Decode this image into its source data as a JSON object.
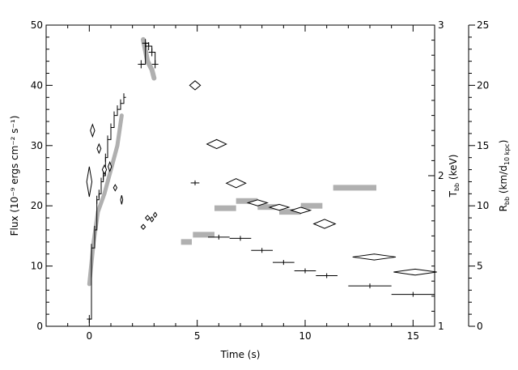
{
  "chart_data": {
    "type": "scatter",
    "title": "",
    "xlabel": "Time (s)",
    "ylabel_left": "Flux (10⁻⁹ ergs cm⁻² s⁻¹)",
    "ylabel_right_inner": "T",
    "ylabel_right_inner_sub": "bb",
    "ylabel_right_inner_unit": " (keV)",
    "ylabel_right_outer": "R",
    "ylabel_right_outer_sub": "bb",
    "ylabel_right_outer_unit": " (km/d",
    "ylabel_right_outer_sub2": "10 kpc",
    "ylabel_right_outer_close": ")",
    "xlim": [
      -2,
      16
    ],
    "ylim_left": [
      0,
      50
    ],
    "ylim_temp": [
      1,
      3
    ],
    "ylim_radius": [
      0,
      25
    ],
    "x_ticks": [
      0,
      5,
      10,
      15
    ],
    "x_tick_labels": [
      "0",
      "5",
      "10",
      "15"
    ],
    "y_left_ticks": [
      0,
      10,
      20,
      30,
      40,
      50
    ],
    "y_left_tick_labels": [
      "0",
      "10",
      "20",
      "30",
      "40",
      "50"
    ],
    "temp_ticks": [
      1,
      2,
      3
    ],
    "temp_tick_labels": [
      "1",
      "2",
      "3"
    ],
    "radius_ticks": [
      0,
      5,
      10,
      15,
      20,
      25
    ],
    "radius_tick_labels": [
      "0",
      "5",
      "10",
      "15",
      "20",
      "25"
    ],
    "grid": false,
    "series": [
      {
        "role": "flux-step",
        "points": [
          {
            "x": 0.0,
            "y": 1.2
          },
          {
            "x": 0.1,
            "y": 13
          },
          {
            "x": 0.25,
            "y": 16
          },
          {
            "x": 0.35,
            "y": 21
          },
          {
            "x": 0.45,
            "y": 22
          },
          {
            "x": 0.55,
            "y": 24
          },
          {
            "x": 0.65,
            "y": 25
          },
          {
            "x": 0.75,
            "y": 28
          },
          {
            "x": 0.85,
            "y": 31
          },
          {
            "x": 1.0,
            "y": 33
          },
          {
            "x": 1.15,
            "y": 35
          },
          {
            "x": 1.3,
            "y": 36
          },
          {
            "x": 1.45,
            "y": 37
          },
          {
            "x": 1.6,
            "y": 38
          }
        ]
      },
      {
        "role": "flux-peak",
        "points": [
          {
            "x": 2.4,
            "y": 43.5
          },
          {
            "x": 2.6,
            "y": 47
          },
          {
            "x": 2.75,
            "y": 46.5
          },
          {
            "x": 2.9,
            "y": 45.5
          },
          {
            "x": 3.05,
            "y": 43.5
          }
        ]
      },
      {
        "role": "flux-decay",
        "points": [
          {
            "x": 4.9,
            "y": 23.8,
            "xerr": 0.2
          },
          {
            "x": 6.0,
            "y": 14.8,
            "xerr": 0.5
          },
          {
            "x": 7.0,
            "y": 14.6,
            "xerr": 0.5
          },
          {
            "x": 8.0,
            "y": 12.6,
            "xerr": 0.5
          },
          {
            "x": 9.0,
            "y": 10.6,
            "xerr": 0.5
          },
          {
            "x": 10.0,
            "y": 9.2,
            "xerr": 0.5
          },
          {
            "x": 11.0,
            "y": 8.4,
            "xerr": 0.5
          },
          {
            "x": 13.0,
            "y": 6.7,
            "xerr": 1.0
          },
          {
            "x": 15.0,
            "y": 5.3,
            "xerr": 1.0
          }
        ]
      },
      {
        "role": "temperature",
        "axis": "temp",
        "points": [
          {
            "x": 0.0,
            "y": 1.96,
            "xerr": 0.12,
            "yerr": 0.1
          },
          {
            "x": 0.15,
            "y": 2.3,
            "xerr": 0.1,
            "yerr": 0.04
          },
          {
            "x": 0.45,
            "y": 2.18,
            "xerr": 0.09,
            "yerr": 0.03
          },
          {
            "x": 0.7,
            "y": 2.04,
            "xerr": 0.1,
            "yerr": 0.03
          },
          {
            "x": 0.95,
            "y": 2.06,
            "xerr": 0.08,
            "yerr": 0.03
          },
          {
            "x": 1.2,
            "y": 1.92,
            "xerr": 0.08,
            "yerr": 0.02
          },
          {
            "x": 1.5,
            "y": 1.84,
            "xerr": 0.05,
            "yerr": 0.03
          },
          {
            "x": 2.5,
            "y": 1.66,
            "xerr": 0.1,
            "yerr": 0.01
          },
          {
            "x": 2.7,
            "y": 1.72,
            "xerr": 0.1,
            "yerr": 0.01
          },
          {
            "x": 2.9,
            "y": 1.71,
            "xerr": 0.08,
            "yerr": 0.01
          },
          {
            "x": 3.05,
            "y": 1.74,
            "xerr": 0.08,
            "yerr": 0.01
          },
          {
            "x": 4.9,
            "y": 2.6,
            "xerr": 0.25,
            "yerr": 0.03
          },
          {
            "x": 5.9,
            "y": 2.21,
            "xerr": 0.45,
            "yerr": 0.03
          },
          {
            "x": 6.8,
            "y": 1.95,
            "xerr": 0.45,
            "yerr": 0.03
          },
          {
            "x": 7.8,
            "y": 1.82,
            "xerr": 0.45,
            "yerr": 0.02
          },
          {
            "x": 8.8,
            "y": 1.79,
            "xerr": 0.45,
            "yerr": 0.02
          },
          {
            "x": 9.8,
            "y": 1.77,
            "xerr": 0.45,
            "yerr": 0.02
          },
          {
            "x": 10.9,
            "y": 1.68,
            "xerr": 0.5,
            "yerr": 0.03
          },
          {
            "x": 13.2,
            "y": 1.46,
            "xerr": 1.0,
            "yerr": 0.02
          },
          {
            "x": 15.1,
            "y": 1.36,
            "xerr": 1.0,
            "yerr": 0.02
          }
        ]
      },
      {
        "role": "radius-band",
        "axis": "radius",
        "color": "#b0b0b0",
        "points": [
          {
            "x": 0.0,
            "y": 3.5
          },
          {
            "x": 0.2,
            "y": 7.0
          },
          {
            "x": 0.4,
            "y": 9.5
          },
          {
            "x": 0.7,
            "y": 11.0
          },
          {
            "x": 1.0,
            "y": 13.0
          },
          {
            "x": 1.3,
            "y": 15.0
          },
          {
            "x": 1.5,
            "y": 17.5
          }
        ],
        "peak_points": [
          {
            "x": 2.5,
            "y": 23.8
          },
          {
            "x": 2.7,
            "y": 22.0
          },
          {
            "x": 2.9,
            "y": 21.3
          },
          {
            "x": 3.0,
            "y": 20.6
          }
        ]
      },
      {
        "role": "radius-bars",
        "axis": "radius",
        "color": "#b0b0b0",
        "points": [
          {
            "x": 4.5,
            "y": 7.0,
            "xerr": 0.25
          },
          {
            "x": 5.3,
            "y": 7.6,
            "xerr": 0.5
          },
          {
            "x": 6.3,
            "y": 9.8,
            "xerr": 0.5
          },
          {
            "x": 7.3,
            "y": 10.4,
            "xerr": 0.5
          },
          {
            "x": 8.3,
            "y": 9.9,
            "xerr": 0.5
          },
          {
            "x": 9.3,
            "y": 9.5,
            "xerr": 0.5
          },
          {
            "x": 10.3,
            "y": 10.0,
            "xerr": 0.5
          },
          {
            "x": 12.3,
            "y": 11.5,
            "xerr": 1.0
          }
        ]
      }
    ]
  }
}
